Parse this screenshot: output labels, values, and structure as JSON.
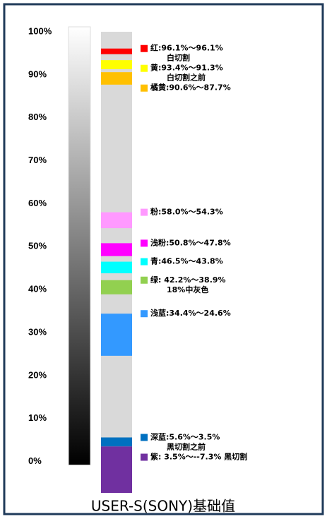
{
  "chart_data": {
    "type": "range-bands",
    "title": "USER-S(SONY)基础值",
    "ylim": [
      -7.3,
      100
    ],
    "yticks": [
      {
        "value": 0,
        "label": "0%"
      },
      {
        "value": 10,
        "label": "10%"
      },
      {
        "value": 20,
        "label": "20%"
      },
      {
        "value": 30,
        "label": "30%"
      },
      {
        "value": 40,
        "label": "40%"
      },
      {
        "value": 50,
        "label": "50%"
      },
      {
        "value": 60,
        "label": "60%"
      },
      {
        "value": 70,
        "label": "70%"
      },
      {
        "value": 80,
        "label": "80%"
      },
      {
        "value": 90,
        "label": "90%"
      },
      {
        "value": 100,
        "label": "100%"
      }
    ],
    "bands": [
      {
        "label": "红:96.1%～96.1%",
        "note": "白切割",
        "color": "#ff0000",
        "high": 96.1,
        "low": 96.1
      },
      {
        "label": "黄:93.4%～91.3%",
        "note": "白切割之前",
        "color": "#ffff00",
        "high": 93.4,
        "low": 91.3
      },
      {
        "label": "橘黄:90.6%～87.7%",
        "color": "#ffc000",
        "high": 90.6,
        "low": 87.7
      },
      {
        "label": "粉:58.0%～54.3%",
        "color": "#ff99ff",
        "high": 58.0,
        "low": 54.3
      },
      {
        "label": "浅粉:50.8%～47.8%",
        "color": "#ff00ff",
        "high": 50.8,
        "low": 47.8
      },
      {
        "label": "青:46.5%～43.8%",
        "color": "#00ffff",
        "high": 46.5,
        "low": 43.8
      },
      {
        "label": "绿: 42.2%～38.9%",
        "note": "18%中灰色",
        "color": "#92d050",
        "high": 42.2,
        "low": 38.9
      },
      {
        "label": "浅蓝:34.4%～24.6%",
        "color": "#3399ff",
        "high": 34.4,
        "low": 24.6
      },
      {
        "label": "深蓝:5.6%～3.5%",
        "note": "黑切割之前",
        "color": "#0070c0",
        "high": 5.6,
        "low": 3.5
      },
      {
        "label": "紫: 3.5%～--7.3% 黑切割",
        "color": "#7030a0",
        "high": 3.5,
        "low": -7.3
      }
    ]
  }
}
